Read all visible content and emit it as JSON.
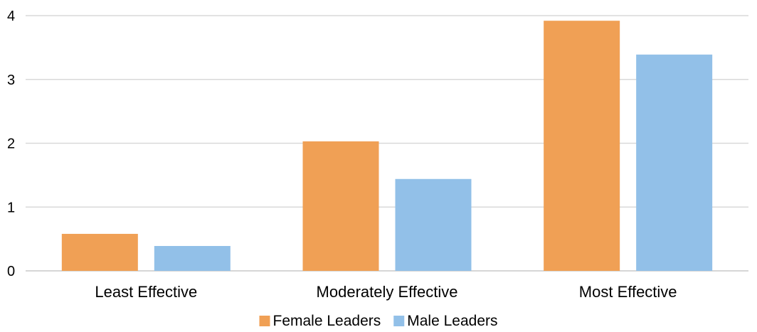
{
  "chart_data": {
    "type": "bar",
    "categories": [
      "Least Effective",
      "Moderately Effective",
      "Most Effective"
    ],
    "series": [
      {
        "name": "Female Leaders",
        "color": "#f0a055",
        "values": [
          0.58,
          2.03,
          3.92
        ]
      },
      {
        "name": "Male Leaders",
        "color": "#92c0e8",
        "values": [
          0.39,
          1.44,
          3.39
        ]
      }
    ],
    "title": "",
    "xlabel": "",
    "ylabel": "",
    "ylim": [
      0,
      4
    ],
    "yticks": [
      "0",
      "1",
      "2",
      "3",
      "4"
    ],
    "grid": true,
    "legend": "bottom"
  }
}
